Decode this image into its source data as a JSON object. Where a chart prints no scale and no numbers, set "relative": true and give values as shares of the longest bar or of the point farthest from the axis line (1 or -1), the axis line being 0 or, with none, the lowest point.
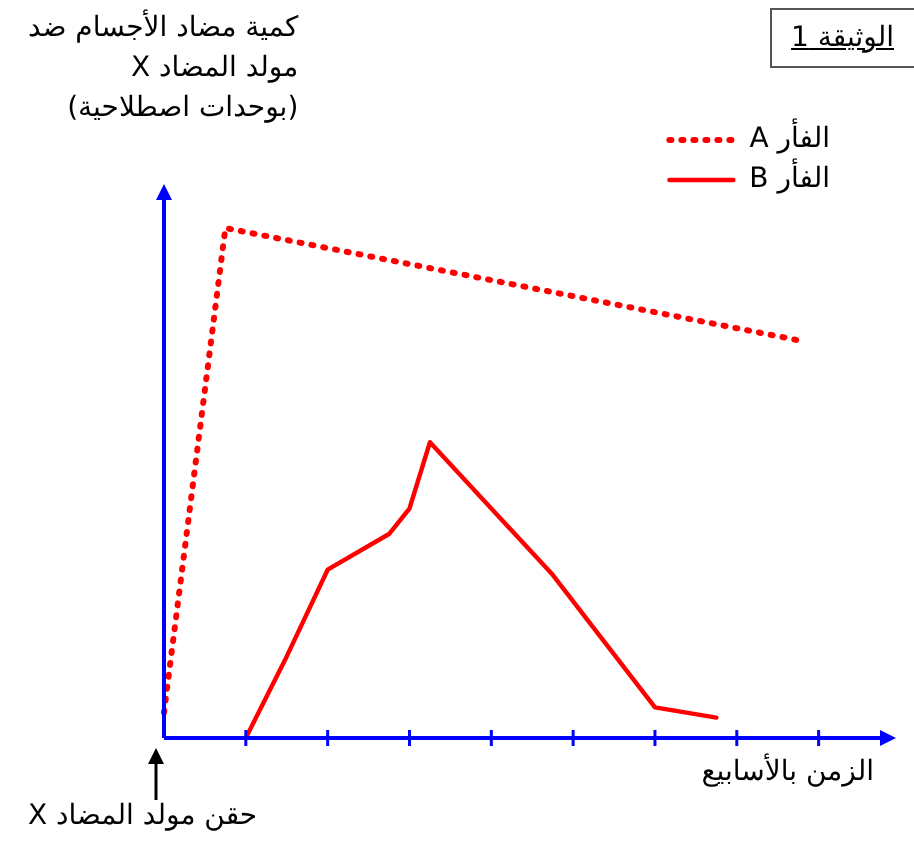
{
  "chart_data": {
    "type": "line",
    "relative": true,
    "title": "الوثيقة 1",
    "ylabel": "كمية مضاد الأجسام ضد\nمولد المضاد X\n(بوحدات اصطلاحية)",
    "xlabel": "الزمن بالأسابيع",
    "annotations": [
      "حقن مولد المضاد X"
    ],
    "categories": [
      null,
      null,
      null,
      null,
      null,
      null,
      null,
      null,
      null,
      null,
      null,
      null,
      null,
      null,
      null,
      null,
      null,
      null,
      null,
      null,
      null,
      null,
      null,
      null,
      null,
      null,
      null,
      null,
      null,
      null,
      null,
      null,
      null,
      null,
      null,
      null
    ],
    "legend": "top right",
    "marker": "none",
    "series": [
      {
        "name": "الفأر A",
        "color": "#ff0000",
        "line_style": "dotted",
        "values": [
          0.05,
          null,
          null,
          1,
          null,
          null,
          null,
          null,
          null,
          null,
          null,
          null,
          null,
          null,
          null,
          null,
          null,
          null,
          null,
          null,
          null,
          null,
          null,
          null,
          null,
          null,
          null,
          null,
          null,
          null,
          null,
          0.78,
          null,
          null,
          null,
          null
        ]
      },
      {
        "name": "الفأر B",
        "color": "#ff0000",
        "line_style": "solid",
        "values": [
          null,
          null,
          null,
          null,
          0,
          null,
          0.16,
          null,
          0.33,
          null,
          null,
          0.4,
          0.45,
          0.58,
          null,
          null,
          null,
          null,
          null,
          0.32,
          null,
          null,
          null,
          null,
          0.06,
          null,
          null,
          0.04,
          null,
          null,
          null,
          null,
          null,
          null,
          null,
          null
        ]
      }
    ]
  }
}
